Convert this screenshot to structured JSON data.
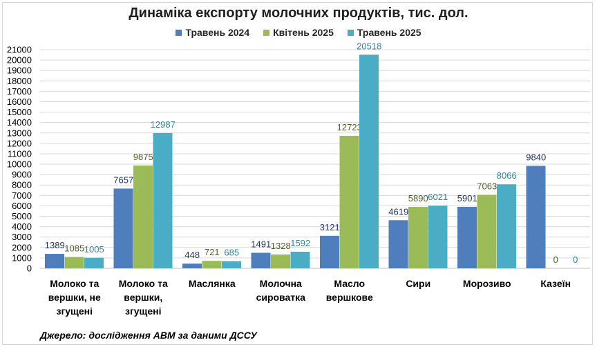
{
  "chart_data": {
    "type": "bar",
    "title": "Динаміка експорту молочних продуктів, тис. дол.",
    "categories": [
      [
        "Молоко та",
        "вершки, не",
        "згущені"
      ],
      [
        "Молоко та",
        "вершки,",
        "згущені"
      ],
      [
        "Маслянка"
      ],
      [
        "Молочна",
        "сироватка"
      ],
      [
        "Масло",
        "вершкове"
      ],
      [
        "Сири"
      ],
      [
        "Морозиво"
      ],
      [
        "Казеїн"
      ]
    ],
    "series": [
      {
        "name": "Травень 2024",
        "color": "#4f7ebd",
        "label_color": "#1f3864",
        "values": [
          1389,
          7657,
          448,
          1491,
          3121,
          4619,
          5901,
          9840
        ]
      },
      {
        "name": "Квітень 2025",
        "color": "#9bbb59",
        "label_color": "#4f6228",
        "values": [
          1085,
          9875,
          721,
          1328,
          12723,
          5890,
          7063,
          0
        ]
      },
      {
        "name": "Травень 2025",
        "color": "#4bacc6",
        "label_color": "#31849b",
        "values": [
          1005,
          12987,
          685,
          1592,
          20518,
          6021,
          8066,
          0
        ]
      }
    ],
    "yticks": [
      0,
      1000,
      2000,
      3000,
      4000,
      5000,
      6000,
      7000,
      8000,
      9000,
      10000,
      11000,
      12000,
      13000,
      14000,
      15000,
      16000,
      17000,
      18000,
      19000,
      20000,
      21000
    ],
    "ylim": [
      0,
      21000
    ],
    "grid": true,
    "legend": "top-center"
  },
  "source_note": "Джерело: дослідження АВМ за даними ДССУ"
}
